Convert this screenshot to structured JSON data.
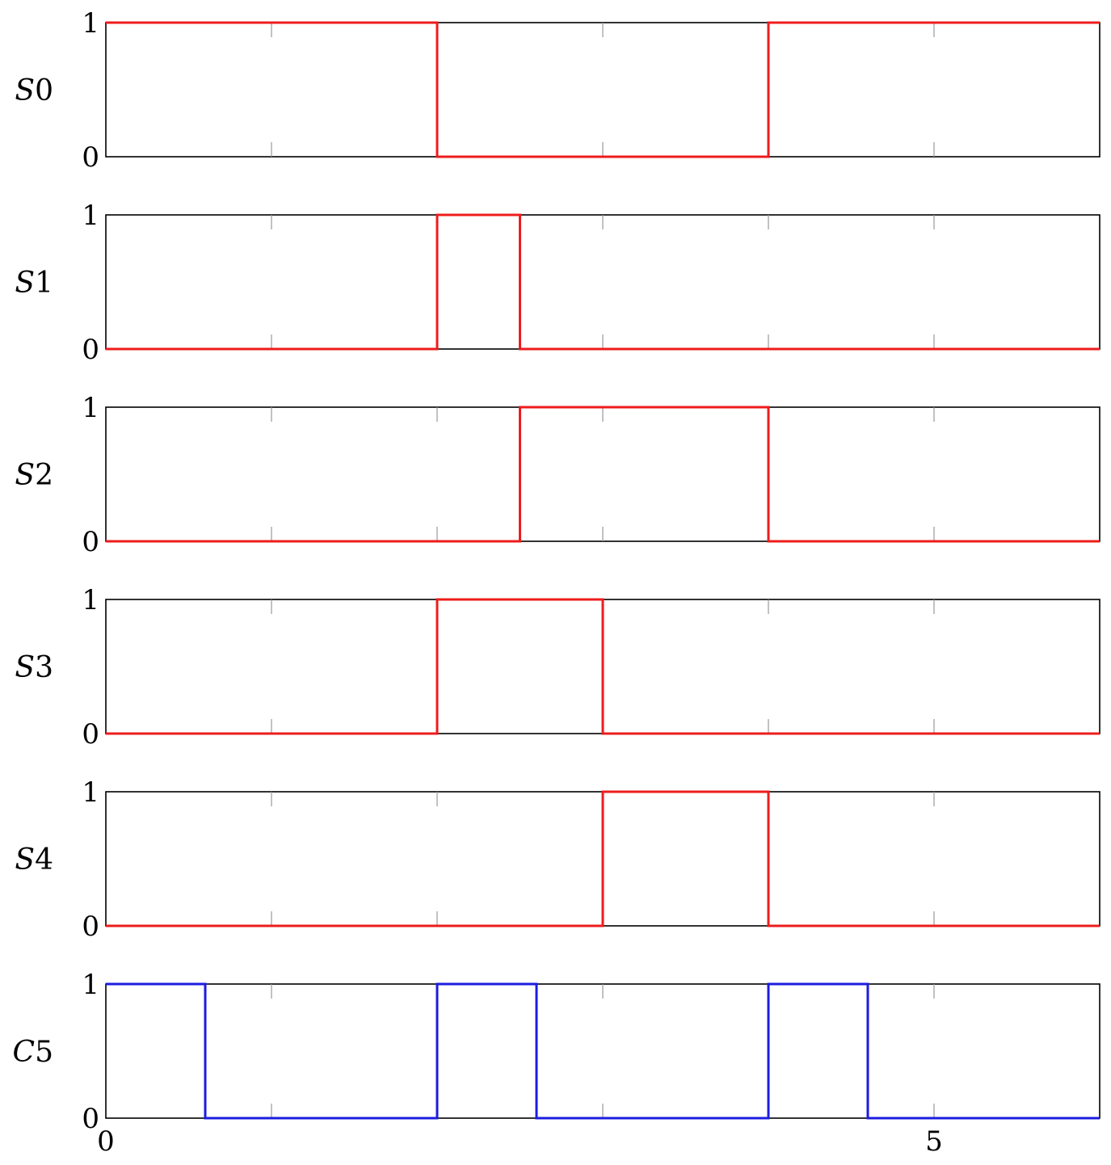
{
  "chart_data": [
    {
      "type": "line",
      "step": true,
      "ylabel_italic": "S",
      "ylabel_num": "0",
      "color": "#ee1c1c",
      "ylim": [
        0,
        1
      ],
      "xlim": [
        0,
        6
      ],
      "yticks": [
        "0",
        "1"
      ],
      "xticks": [],
      "segments": [
        [
          0,
          1
        ],
        [
          2,
          0
        ],
        [
          4,
          1
        ],
        [
          6,
          1
        ]
      ]
    },
    {
      "type": "line",
      "step": true,
      "ylabel_italic": "S",
      "ylabel_num": "1",
      "color": "#ee1c1c",
      "ylim": [
        0,
        1
      ],
      "xlim": [
        0,
        6
      ],
      "yticks": [
        "0",
        "1"
      ],
      "xticks": [],
      "segments": [
        [
          0,
          0
        ],
        [
          2,
          1
        ],
        [
          2.5,
          0
        ],
        [
          6,
          0
        ]
      ]
    },
    {
      "type": "line",
      "step": true,
      "ylabel_italic": "S",
      "ylabel_num": "2",
      "color": "#ee1c1c",
      "ylim": [
        0,
        1
      ],
      "xlim": [
        0,
        6
      ],
      "yticks": [
        "0",
        "1"
      ],
      "xticks": [],
      "segments": [
        [
          0,
          0
        ],
        [
          2.5,
          1
        ],
        [
          4,
          0
        ],
        [
          6,
          0
        ]
      ]
    },
    {
      "type": "line",
      "step": true,
      "ylabel_italic": "S",
      "ylabel_num": "3",
      "color": "#ee1c1c",
      "ylim": [
        0,
        1
      ],
      "xlim": [
        0,
        6
      ],
      "yticks": [
        "0",
        "1"
      ],
      "xticks": [],
      "segments": [
        [
          0,
          0
        ],
        [
          2,
          1
        ],
        [
          3,
          0
        ],
        [
          6,
          0
        ]
      ]
    },
    {
      "type": "line",
      "step": true,
      "ylabel_italic": "S",
      "ylabel_num": "4",
      "color": "#ee1c1c",
      "ylim": [
        0,
        1
      ],
      "xlim": [
        0,
        6
      ],
      "yticks": [
        "0",
        "1"
      ],
      "xticks": [],
      "segments": [
        [
          0,
          0
        ],
        [
          3,
          1
        ],
        [
          4,
          0
        ],
        [
          6,
          0
        ]
      ]
    },
    {
      "type": "line",
      "step": true,
      "ylabel_italic": "C",
      "ylabel_num": "5",
      "color": "#1c1ce0",
      "ylim": [
        0,
        1
      ],
      "xlim": [
        0,
        6
      ],
      "yticks": [
        "0",
        "1"
      ],
      "xticks": [
        "0",
        "5"
      ],
      "xtick_values": [
        0,
        5
      ],
      "segments": [
        [
          0,
          1
        ],
        [
          0.6,
          0
        ],
        [
          2,
          1
        ],
        [
          2.6,
          0
        ],
        [
          4,
          1
        ],
        [
          4.6,
          0
        ],
        [
          6,
          0
        ]
      ]
    }
  ]
}
